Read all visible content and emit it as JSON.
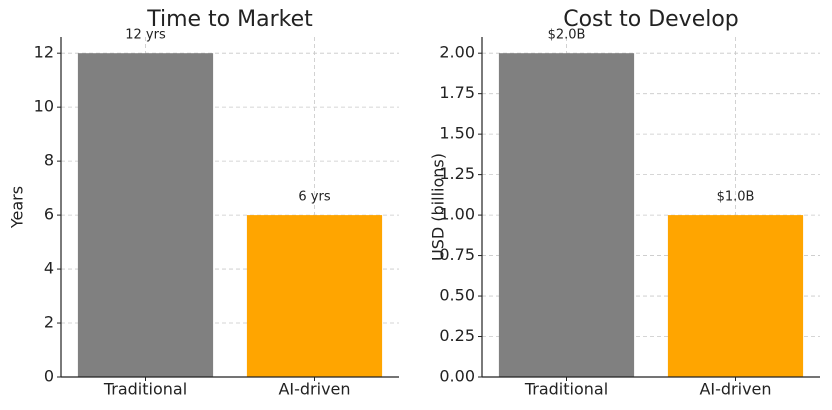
{
  "chart_data": [
    {
      "type": "bar",
      "title": "Time to Market",
      "ylabel": "Years",
      "categories": [
        "Traditional",
        "AI-driven"
      ],
      "values": [
        12,
        6
      ],
      "value_labels": [
        "12 yrs",
        "6 yrs"
      ],
      "colors": [
        "#808080",
        "#ffa500"
      ],
      "ylim": [
        0,
        12.6
      ],
      "yticks": [
        0,
        2,
        4,
        6,
        8,
        10,
        12
      ],
      "grid": true
    },
    {
      "type": "bar",
      "title": "Cost to Develop",
      "ylabel": "USD (billions)",
      "categories": [
        "Traditional",
        "AI-driven"
      ],
      "values": [
        2.0,
        1.0
      ],
      "value_labels": [
        "$2.0B",
        "$1.0B"
      ],
      "colors": [
        "#808080",
        "#ffa500"
      ],
      "ylim": [
        0,
        2.1
      ],
      "yticks": [
        {
          "value": 0,
          "label": "0.00"
        },
        {
          "value": 0.25,
          "label": "0.25"
        },
        {
          "value": 0.5,
          "label": "0.50"
        },
        {
          "value": 0.75,
          "label": "0.75"
        },
        {
          "value": 1,
          "label": "1.00"
        },
        {
          "value": 1.25,
          "label": "1.25"
        },
        {
          "value": 1.5,
          "label": "1.50"
        },
        {
          "value": 1.75,
          "label": "1.75"
        },
        {
          "value": 2,
          "label": "2.00"
        }
      ],
      "grid": true
    }
  ]
}
